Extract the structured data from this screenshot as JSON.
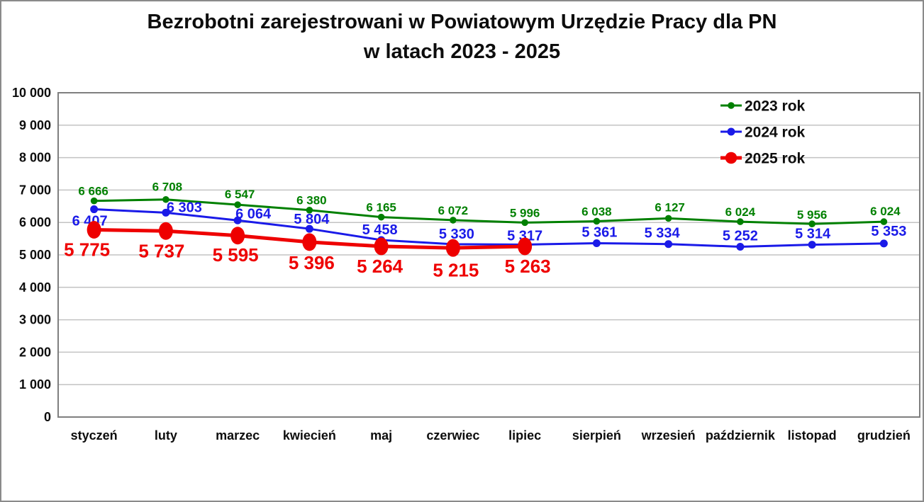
{
  "title": {
    "line1": "Bezrobotni zarejestrowani w Powiatowym Urzędzie Pracy dla PN",
    "line2": "w latach 2023 - 2025"
  },
  "chart_data": {
    "type": "line",
    "title": "Bezrobotni zarejestrowani w Powiatowym Urzędzie Pracy dla PN w latach 2023 - 2025",
    "xlabel": "",
    "ylabel": "",
    "ylim": [
      0,
      10000
    ],
    "ytick_step": 1000,
    "grid": true,
    "legend_position": "top-right",
    "categories": [
      "styczeń",
      "luty",
      "marzec",
      "kwiecień",
      "maj",
      "czerwiec",
      "lipiec",
      "sierpień",
      "wrzesień",
      "październik",
      "listopad",
      "grudzień"
    ],
    "series": [
      {
        "name": "2023 rok",
        "color": "#008000",
        "line_width": 3,
        "marker_rx": 4.8,
        "marker_ry": 4.8,
        "label_font": 17,
        "values": [
          6666,
          6708,
          6547,
          6380,
          6165,
          6072,
          5996,
          6038,
          6127,
          6024,
          5956,
          6024
        ],
        "label_offsets": [
          [
            -1,
            -14
          ],
          [
            2,
            -18
          ],
          [
            3,
            -15
          ],
          [
            3,
            -14
          ],
          [
            0,
            -14
          ],
          [
            0,
            -14
          ],
          [
            0,
            -14
          ],
          [
            0,
            -14
          ],
          [
            2,
            -16
          ],
          [
            0,
            -14
          ],
          [
            0,
            -13
          ],
          [
            2,
            -15
          ]
        ]
      },
      {
        "name": "2024 rok",
        "color": "#1a1ae8",
        "line_width": 3,
        "marker_rx": 5.5,
        "marker_ry": 5.5,
        "label_font": 20,
        "values": [
          6407,
          6303,
          6064,
          5804,
          5458,
          5330,
          5317,
          5361,
          5334,
          5252,
          5314,
          5353
        ],
        "label_offsets": [
          [
            -6,
            16
          ],
          [
            26,
            -8
          ],
          [
            22,
            -10
          ],
          [
            3,
            -14
          ],
          [
            -2,
            -15
          ],
          [
            5,
            -15
          ],
          [
            0,
            -13
          ],
          [
            4,
            -16
          ],
          [
            -9,
            -16
          ],
          [
            0,
            -16
          ],
          [
            1,
            -16
          ],
          [
            7,
            -18
          ]
        ]
      },
      {
        "name": "2025 rok",
        "color": "#ee0000",
        "line_width": 5,
        "marker_rx": 10,
        "marker_ry": 12.5,
        "label_font": 26,
        "values": [
          5775,
          5737,
          5595,
          5396,
          5264,
          5215,
          5263
        ],
        "label_offsets": [
          [
            -10,
            28
          ],
          [
            -6,
            28
          ],
          [
            -3,
            27
          ],
          [
            3,
            29
          ],
          [
            -2,
            28
          ],
          [
            4,
            31
          ],
          [
            4,
            28
          ]
        ]
      }
    ]
  }
}
